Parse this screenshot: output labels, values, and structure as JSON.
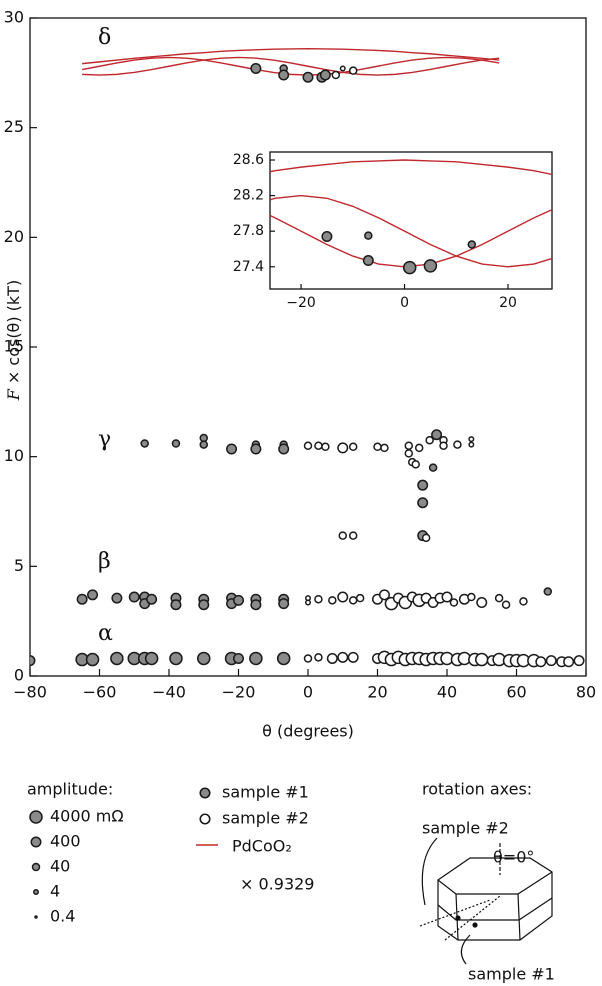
{
  "chart_data": [
    {
      "type": "scatter",
      "x_label": "θ (degrees)",
      "y_label_var": "F",
      "y_label_rest": "× cos(θ)  (kT)",
      "annotations": [
        "δ",
        "γ",
        "β",
        "α"
      ],
      "xlim": [
        -80,
        80
      ],
      "ylim": [
        0,
        30
      ],
      "xticks": [
        {
          "value": -80,
          "label": "−80"
        },
        {
          "value": -60,
          "label": "−60"
        },
        {
          "value": -40,
          "label": "−40"
        },
        {
          "value": -20,
          "label": "−20"
        },
        0,
        20,
        40,
        60,
        80
      ],
      "yticks": [
        0,
        5,
        10,
        15,
        20,
        25,
        30
      ],
      "series": [
        {
          "name": "sample #1",
          "color": "#8a8a8a",
          "x": [
            -80,
            -65,
            -62,
            -55,
            -50,
            -47,
            -45,
            -38,
            -30,
            -22,
            -20,
            -15,
            -7,
            -65,
            -62,
            -55,
            -50,
            -47,
            -47,
            -45,
            -38,
            -38,
            -30,
            -30,
            -22,
            -22,
            -20,
            -15,
            -15,
            -7,
            -7,
            69,
            -47,
            -38,
            -30,
            -30,
            -22,
            -15,
            -15,
            -7,
            -7,
            33,
            33,
            33,
            36,
            37,
            -15,
            -7,
            -7,
            0,
            4,
            5
          ],
          "values": [
            0.7,
            0.75,
            0.75,
            0.8,
            0.8,
            0.8,
            0.8,
            0.8,
            0.8,
            0.8,
            0.8,
            0.8,
            0.8,
            3.5,
            3.7,
            3.55,
            3.6,
            3.6,
            3.3,
            3.5,
            3.55,
            3.25,
            3.5,
            3.25,
            3.55,
            3.3,
            3.45,
            3.5,
            3.25,
            3.5,
            3.3,
            3.85,
            10.6,
            10.6,
            10.85,
            10.55,
            10.35,
            10.55,
            10.35,
            10.55,
            10.35,
            8.7,
            7.9,
            6.4,
            9.5,
            11.0,
            27.7,
            27.7,
            27.4,
            27.3,
            27.3,
            27.4
          ],
          "sizes": [
            400,
            4000,
            4000,
            4000,
            4000,
            4000,
            4000,
            4000,
            4000,
            4000,
            400,
            4000,
            4000,
            400,
            400,
            400,
            400,
            400,
            400,
            400,
            400,
            400,
            400,
            400,
            400,
            400,
            400,
            400,
            400,
            400,
            400,
            40,
            40,
            40,
            40,
            40,
            400,
            40,
            400,
            40,
            400,
            400,
            400,
            400,
            40,
            400,
            400,
            40,
            400,
            400,
            400,
            400
          ]
        },
        {
          "name": "sample #2",
          "color": "#ffffff",
          "x": [
            0,
            3,
            7,
            10,
            13,
            20,
            22,
            24,
            26,
            28,
            30,
            32,
            34,
            36,
            38,
            40,
            43,
            45,
            48,
            50,
            53,
            55,
            58,
            60,
            62,
            65,
            67,
            70,
            73,
            75,
            78,
            0,
            0,
            3,
            7,
            10,
            13,
            15,
            20,
            22,
            24,
            26,
            28,
            30,
            32,
            34,
            36,
            38,
            40,
            42,
            45,
            47,
            50,
            55,
            57,
            62,
            0,
            3,
            5,
            10,
            13,
            20,
            22,
            29,
            29,
            30,
            31,
            32,
            35,
            39,
            39,
            43,
            47,
            47,
            10,
            13,
            34,
            8,
            10,
            13
          ],
          "values": [
            0.8,
            0.85,
            0.8,
            0.85,
            0.85,
            0.8,
            0.85,
            0.75,
            0.85,
            0.75,
            0.8,
            0.8,
            0.75,
            0.8,
            0.8,
            0.8,
            0.75,
            0.8,
            0.75,
            0.75,
            0.7,
            0.75,
            0.7,
            0.7,
            0.7,
            0.7,
            0.65,
            0.7,
            0.65,
            0.65,
            0.7,
            3.55,
            3.35,
            3.5,
            3.45,
            3.6,
            3.45,
            3.55,
            3.5,
            3.7,
            3.3,
            3.55,
            3.35,
            3.6,
            3.45,
            3.55,
            3.35,
            3.55,
            3.6,
            3.35,
            3.5,
            3.6,
            3.35,
            3.55,
            3.25,
            3.4,
            10.5,
            10.5,
            10.45,
            10.4,
            10.45,
            10.45,
            10.4,
            10.5,
            10.15,
            9.75,
            9.65,
            10.4,
            10.75,
            10.75,
            10.5,
            10.55,
            10.8,
            10.55,
            6.4,
            6.4,
            6.3,
            27.4,
            27.7,
            27.6
          ],
          "sizes": [
            40,
            40,
            400,
            400,
            400,
            400,
            4000,
            4000,
            4000,
            4000,
            4000,
            4000,
            4000,
            4000,
            4000,
            4000,
            4000,
            4000,
            4000,
            4000,
            400,
            4000,
            4000,
            4000,
            4000,
            4000,
            400,
            400,
            400,
            400,
            400,
            4,
            4,
            40,
            40,
            400,
            40,
            40,
            400,
            400,
            4000,
            400,
            4000,
            400,
            4000,
            400,
            400,
            400,
            400,
            40,
            400,
            40,
            400,
            40,
            40,
            40,
            40,
            40,
            40,
            400,
            40,
            40,
            40,
            40,
            40,
            40,
            40,
            40,
            40,
            40,
            40,
            40,
            4,
            4,
            40,
            40,
            40,
            40,
            4,
            40
          ]
        }
      ],
      "model": {
        "name": "PdCoO₂",
        "factor_label": "× 0.9329",
        "color": "#c0282d",
        "x": [
          -65,
          -60,
          -55,
          -50,
          -45,
          -40,
          -35,
          -30,
          -25,
          -20,
          -15,
          -10,
          -5,
          0,
          5,
          10,
          15,
          20,
          25,
          30,
          35,
          40,
          45,
          50,
          55
        ],
        "curves": [
          [
            27.92,
            28.0,
            28.08,
            28.16,
            28.23,
            28.3,
            28.37,
            28.42,
            28.48,
            28.52,
            28.55,
            28.58,
            28.59,
            28.6,
            28.59,
            28.58,
            28.55,
            28.52,
            28.48,
            28.42,
            28.37,
            28.3,
            28.23,
            28.16,
            28.08
          ],
          [
            27.65,
            27.8,
            27.95,
            28.08,
            28.17,
            28.2,
            28.17,
            28.08,
            27.95,
            27.8,
            27.65,
            27.52,
            27.43,
            27.4,
            27.43,
            27.52,
            27.65,
            27.8,
            27.95,
            28.08,
            28.17,
            28.2,
            28.17,
            28.08,
            27.95
          ],
          [
            27.43,
            27.4,
            27.43,
            27.52,
            27.65,
            27.8,
            27.95,
            28.08,
            28.17,
            28.2,
            28.17,
            28.08,
            27.95,
            27.8,
            27.65,
            27.52,
            27.43,
            27.4,
            27.43,
            27.52,
            27.65,
            27.8,
            27.95,
            28.08,
            28.17
          ]
        ]
      },
      "size_legend": {
        "title": "amplitude:",
        "items": [
          {
            "value": 4000,
            "label": "4000 mΩ"
          },
          {
            "value": 400,
            "label": "400"
          },
          {
            "value": 40,
            "label": "40"
          },
          {
            "value": 4,
            "label": "4"
          },
          {
            "value": 0.4,
            "label": "0.4"
          }
        ]
      }
    },
    {
      "type": "scatter",
      "xlim": [
        -26,
        28.5
      ],
      "ylim": [
        27.15,
        28.69
      ],
      "xticks": [
        {
          "value": -20,
          "label": "−20"
        },
        0,
        20
      ],
      "yticks": [
        27.4,
        27.8,
        28.2,
        28.6
      ],
      "series": [
        {
          "color": "#8a8a8a",
          "x": [
            -15,
            -7,
            -7,
            1,
            5,
            13
          ],
          "values": [
            27.74,
            27.75,
            27.47,
            27.39,
            27.41,
            27.65
          ],
          "sizes": [
            400,
            40,
            400,
            4000,
            4000,
            40
          ]
        }
      ]
    }
  ],
  "diagram": {
    "title": "rotation axes:",
    "upper_label": "sample #2",
    "axis_label": "θ=0°",
    "lower_label": "sample #1"
  }
}
